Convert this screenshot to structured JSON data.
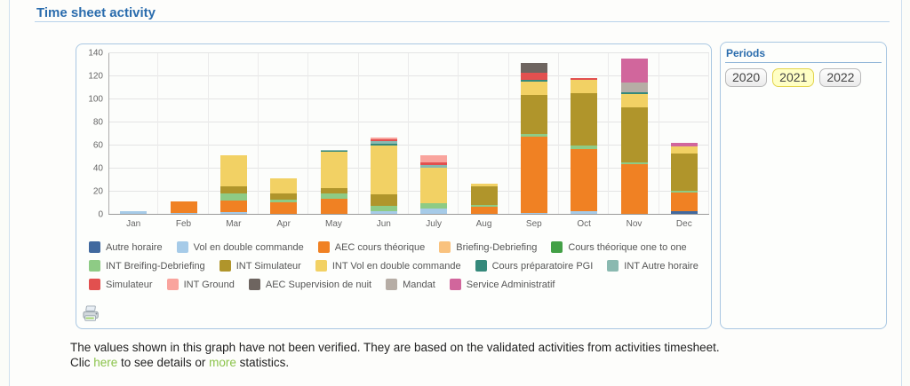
{
  "page": {
    "title": "Time sheet activity"
  },
  "colors": {
    "title_blue": "#2a6cad",
    "link_green": "#8bc34a",
    "selected_period_bg": "#ffffc4",
    "selected_period_border": "#e3d44d",
    "panel_border": "#a9c7e2"
  },
  "periods": {
    "title": "Periods",
    "options": [
      {
        "label": "2020",
        "selected": false
      },
      {
        "label": "2021",
        "selected": true
      },
      {
        "label": "2022",
        "selected": false
      }
    ]
  },
  "chart_data": {
    "type": "bar",
    "stacked": true,
    "categories": [
      "Jan",
      "Feb",
      "Mar",
      "Apr",
      "May",
      "Jun",
      "July",
      "Aug",
      "Sep",
      "Oct",
      "Nov",
      "Dec"
    ],
    "series": [
      {
        "name": "Autre horaire",
        "color": "#41699f",
        "values": [
          0,
          0,
          0,
          0,
          0,
          0,
          0,
          0,
          0,
          0,
          0,
          2.5
        ]
      },
      {
        "name": "Vol en double commande",
        "color": "#a6cbe8",
        "values": [
          2,
          1,
          1.5,
          0,
          0,
          2,
          5,
          0,
          1,
          2.5,
          0,
          0
        ]
      },
      {
        "name": "AEC cours théorique",
        "color": "#f08123",
        "values": [
          0,
          10,
          10,
          10,
          13,
          0,
          0,
          6.5,
          66,
          54,
          43,
          16
        ]
      },
      {
        "name": "Briefing-Debriefing",
        "color": "#f9c27e",
        "values": [
          0,
          0,
          0,
          0,
          0,
          0,
          0,
          0,
          0,
          0,
          0,
          0
        ]
      },
      {
        "name": "Cours théorique one to one",
        "color": "#43a046",
        "values": [
          0,
          0,
          0,
          0,
          0,
          0,
          0,
          0,
          0,
          0,
          0,
          0
        ]
      },
      {
        "name": "INT Breifing-Debriefing",
        "color": "#8ecb85",
        "values": [
          0,
          0,
          6,
          2,
          5,
          5,
          4,
          1,
          2,
          2.5,
          2,
          1.5
        ]
      },
      {
        "name": "INT Simulateur",
        "color": "#b0952b",
        "values": [
          0,
          0,
          6,
          6,
          4,
          10,
          0,
          16.5,
          34,
          46,
          47,
          32
        ]
      },
      {
        "name": "INT Vol en double commande",
        "color": "#f2d164",
        "values": [
          0,
          0,
          27,
          13,
          32,
          42,
          31,
          2,
          12,
          11,
          11.5,
          6.5
        ]
      },
      {
        "name": "Cours préparatoire PGI",
        "color": "#35897b",
        "values": [
          0,
          0,
          0,
          0,
          0.5,
          2,
          0,
          0,
          1,
          0,
          2,
          0
        ]
      },
      {
        "name": "INT Autre horaire",
        "color": "#8ab9b0",
        "values": [
          0,
          0,
          0,
          0,
          1,
          2,
          2,
          0,
          0,
          0,
          0,
          0
        ]
      },
      {
        "name": "Simulateur",
        "color": "#e2504f",
        "values": [
          0,
          0,
          0,
          0,
          0,
          1.5,
          2.5,
          0,
          6,
          2,
          0,
          0
        ]
      },
      {
        "name": "INT Ground",
        "color": "#f9a49d",
        "values": [
          0,
          0,
          0,
          0,
          0,
          1.5,
          6,
          0,
          0,
          0,
          0,
          0
        ]
      },
      {
        "name": "AEC Supervision de nuit",
        "color": "#6e6560",
        "values": [
          0,
          0,
          0,
          0,
          0,
          0,
          0,
          0,
          9,
          0,
          0,
          0
        ]
      },
      {
        "name": "Mandat",
        "color": "#b6ada5",
        "values": [
          0,
          0,
          0,
          0,
          0,
          0,
          0,
          0,
          0,
          0,
          8.5,
          0
        ]
      },
      {
        "name": "Service Administratif",
        "color": "#d1669c",
        "values": [
          0,
          0,
          0,
          0,
          0,
          0,
          0,
          0,
          0,
          0,
          21,
          3
        ]
      }
    ],
    "legend_rows": [
      [
        0,
        1,
        2,
        3,
        4
      ],
      [
        5,
        6,
        7,
        8,
        9
      ],
      [
        10,
        11,
        12,
        13,
        14
      ]
    ],
    "ylim": [
      0,
      140
    ],
    "ytick_step": 20,
    "grid": true,
    "legend_position": "bottom"
  },
  "footer": {
    "line1": "The values shown in this graph have not been verified. They are based on the validated activities from activities timesheet.",
    "line2_prefix": "Clic ",
    "link1": "here",
    "line2_mid": " to see details or ",
    "link2": "more",
    "line2_suffix": " statistics."
  }
}
